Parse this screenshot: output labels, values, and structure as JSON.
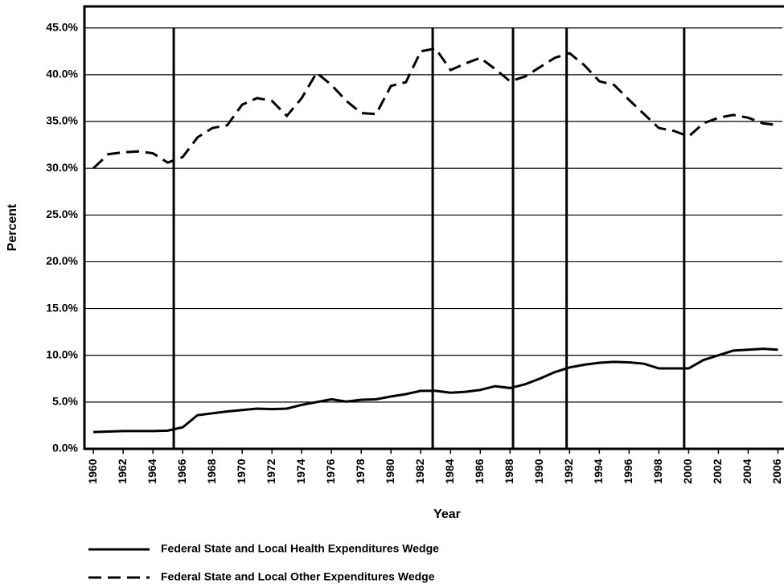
{
  "chart_data": {
    "type": "line",
    "x_label": "Year",
    "y_label": "Percent",
    "x": [
      1960,
      1961,
      1962,
      1963,
      1964,
      1965,
      1966,
      1967,
      1968,
      1969,
      1970,
      1971,
      1972,
      1973,
      1974,
      1975,
      1976,
      1977,
      1978,
      1979,
      1980,
      1981,
      1982,
      1983,
      1984,
      1985,
      1986,
      1987,
      1988,
      1989,
      1990,
      1991,
      1992,
      1993,
      1994,
      1995,
      1996,
      1997,
      1998,
      1999,
      2000,
      2001,
      2002,
      2003,
      2004,
      2005,
      2006
    ],
    "series": [
      {
        "name": "Federal State and Local Health Expenditures Wedge",
        "color": "#000000",
        "dash": false,
        "values": [
          1.8,
          1.85,
          1.9,
          1.9,
          1.9,
          1.95,
          2.3,
          3.6,
          3.8,
          4.0,
          4.15,
          4.3,
          4.25,
          4.3,
          4.7,
          5.0,
          5.3,
          5.05,
          5.25,
          5.3,
          5.6,
          5.85,
          6.2,
          6.2,
          6.0,
          6.1,
          6.3,
          6.7,
          6.5,
          6.9,
          7.5,
          8.2,
          8.7,
          9.0,
          9.2,
          9.3,
          9.25,
          9.1,
          8.6,
          8.6,
          8.6,
          9.5,
          10.0,
          10.5,
          10.6,
          10.7,
          10.6
        ]
      },
      {
        "name": "Federal State and Local Other Expenditures Wedge",
        "color": "#000000",
        "dash": true,
        "values": [
          30.0,
          31.5,
          31.7,
          31.8,
          31.6,
          30.6,
          31.2,
          33.3,
          34.3,
          34.6,
          36.8,
          37.5,
          37.2,
          35.6,
          37.5,
          40.2,
          38.9,
          37.2,
          35.9,
          35.8,
          38.8,
          39.2,
          42.5,
          42.8,
          40.5,
          41.2,
          41.8,
          40.6,
          39.3,
          39.8,
          40.8,
          41.8,
          42.3,
          41.0,
          39.3,
          38.9,
          37.3,
          35.8,
          34.3,
          34.0,
          33.4,
          34.8,
          35.4,
          35.7,
          35.4,
          34.8,
          34.6
        ]
      }
    ],
    "vertical_lines": [
      1965.4,
      1982.8,
      1988.2,
      1991.8,
      1999.7
    ],
    "xlim": [
      1959.4,
      2006.3
    ],
    "xticks": [
      1960,
      1962,
      1964,
      1966,
      1968,
      1970,
      1972,
      1974,
      1976,
      1978,
      1980,
      1982,
      1984,
      1986,
      1988,
      1990,
      1992,
      1994,
      1996,
      1998,
      2000,
      2002,
      2004,
      2006
    ],
    "ylim": [
      0,
      47.3
    ],
    "yticks": [
      {
        "value": 0,
        "label": "0.0%"
      },
      {
        "value": 5,
        "label": "5.0%"
      },
      {
        "value": 10,
        "label": "10.0%"
      },
      {
        "value": 15,
        "label": "15.0%"
      },
      {
        "value": 20,
        "label": "20.0%"
      },
      {
        "value": 25,
        "label": "25.0%"
      },
      {
        "value": 30,
        "label": "30.0%"
      },
      {
        "value": 35,
        "label": "35.0%"
      },
      {
        "value": 40,
        "label": "40.0%"
      },
      {
        "value": 45,
        "label": "45.0%"
      }
    ],
    "grid": true,
    "legend": "bottom"
  }
}
